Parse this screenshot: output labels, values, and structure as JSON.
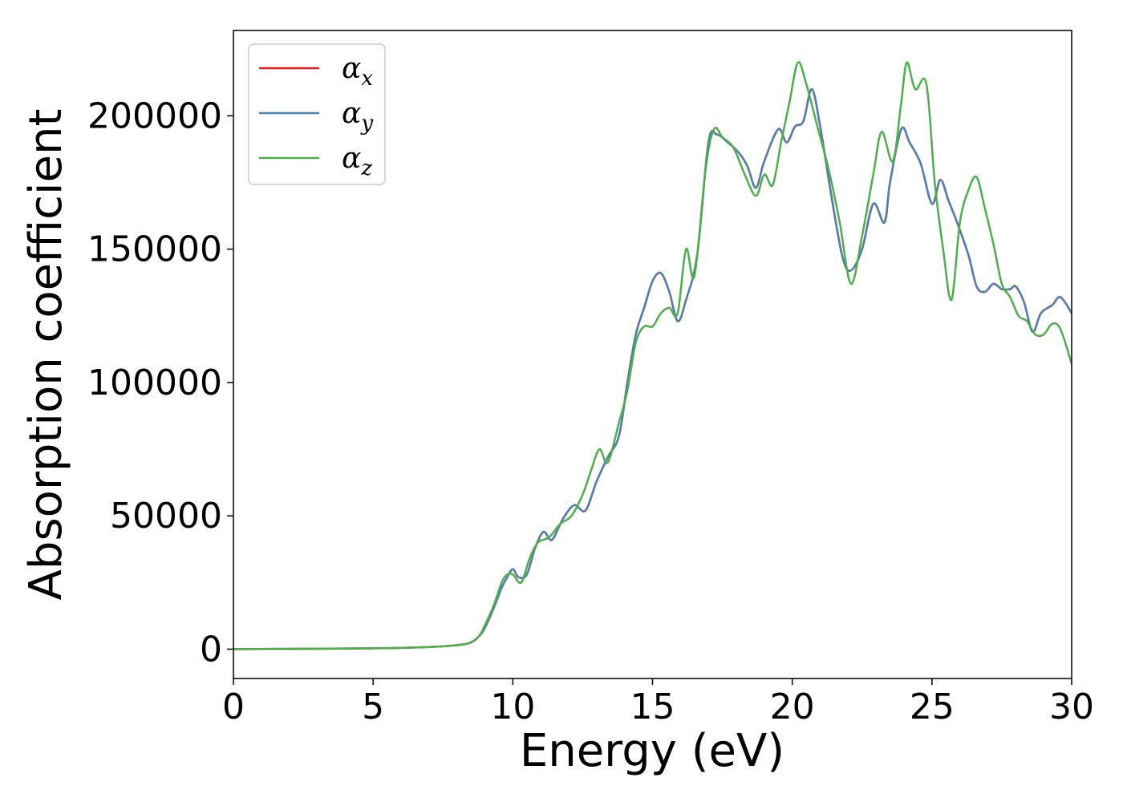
{
  "chart_data": {
    "type": "line",
    "xlabel": "Energy (eV)",
    "ylabel": "Absorption coefficient",
    "xlim": [
      0,
      30
    ],
    "ylim": [
      -11000,
      232000
    ],
    "xticks": [
      0,
      5,
      10,
      15,
      20,
      25,
      30
    ],
    "yticks": [
      0,
      50000,
      100000,
      150000,
      200000
    ],
    "grid": false,
    "legend_position": "top-left",
    "series": [
      {
        "name": "α_x",
        "label_base": "α",
        "label_sub": "x",
        "color": "#e41a1c",
        "x": [
          0,
          5,
          7,
          8,
          8.5,
          8.8,
          9.0,
          9.3,
          9.6,
          9.8,
          10.0,
          10.2,
          10.5,
          10.8,
          11.1,
          11.4,
          11.8,
          12.2,
          12.6,
          13.0,
          13.4,
          13.8,
          14.1,
          14.4,
          14.7,
          15.0,
          15.3,
          15.6,
          15.9,
          16.2,
          16.6,
          17.0,
          17.3,
          17.7,
          18.1,
          18.4,
          18.7,
          19.0,
          19.5,
          19.8,
          20.1,
          20.4,
          20.7,
          21.0,
          21.4,
          21.8,
          22.1,
          22.5,
          22.9,
          23.3,
          23.5,
          23.9,
          24.2,
          24.6,
          25.0,
          25.3,
          25.6,
          25.9,
          26.3,
          26.6,
          26.9,
          27.2,
          27.5,
          27.8,
          28.0,
          28.3,
          28.6,
          28.9,
          29.3,
          29.6,
          30.0
        ],
        "y": [
          0,
          300,
          800,
          1500,
          2500,
          5000,
          8000,
          15000,
          23000,
          27000,
          30000,
          27000,
          28000,
          38000,
          44000,
          41000,
          49000,
          54000,
          52000,
          63000,
          72000,
          80000,
          100000,
          118000,
          128000,
          138000,
          141000,
          134000,
          123000,
          131000,
          148000,
          190000,
          193000,
          190000,
          186000,
          181000,
          173000,
          183000,
          195000,
          190000,
          196000,
          198000,
          210000,
          196000,
          170000,
          147000,
          142000,
          150000,
          167000,
          160000,
          175000,
          195000,
          190000,
          182000,
          167000,
          176000,
          168000,
          160000,
          148000,
          136000,
          134000,
          137000,
          135000,
          135000,
          136000,
          130000,
          119000,
          126000,
          129000,
          132000,
          126000
        ]
      },
      {
        "name": "α_y",
        "label_base": "α",
        "label_sub": "y",
        "color": "#4f7fb3",
        "x": [
          0,
          5,
          7,
          8,
          8.5,
          8.8,
          9.0,
          9.3,
          9.6,
          9.8,
          10.0,
          10.2,
          10.5,
          10.8,
          11.1,
          11.4,
          11.8,
          12.2,
          12.6,
          13.0,
          13.4,
          13.8,
          14.1,
          14.4,
          14.7,
          15.0,
          15.3,
          15.6,
          15.9,
          16.2,
          16.6,
          17.0,
          17.3,
          17.7,
          18.1,
          18.4,
          18.7,
          19.0,
          19.5,
          19.8,
          20.1,
          20.4,
          20.7,
          21.0,
          21.4,
          21.8,
          22.1,
          22.5,
          22.9,
          23.3,
          23.5,
          23.9,
          24.2,
          24.6,
          25.0,
          25.3,
          25.6,
          25.9,
          26.3,
          26.6,
          26.9,
          27.2,
          27.5,
          27.8,
          28.0,
          28.3,
          28.6,
          28.9,
          29.3,
          29.6,
          30.0
        ],
        "y": [
          0,
          300,
          800,
          1500,
          2500,
          5000,
          8000,
          15000,
          23000,
          27000,
          30000,
          27000,
          28000,
          38000,
          44000,
          41000,
          49000,
          54000,
          52000,
          63000,
          72000,
          80000,
          100000,
          118000,
          128000,
          138000,
          141000,
          134000,
          123000,
          131000,
          148000,
          190000,
          193000,
          190000,
          186000,
          181000,
          173000,
          183000,
          195000,
          190000,
          196000,
          198000,
          210000,
          196000,
          170000,
          147000,
          142000,
          150000,
          167000,
          160000,
          175000,
          195000,
          190000,
          182000,
          167000,
          176000,
          168000,
          160000,
          148000,
          136000,
          134000,
          137000,
          135000,
          135000,
          136000,
          130000,
          119000,
          126000,
          129000,
          132000,
          126000
        ]
      },
      {
        "name": "α_z",
        "label_base": "α",
        "label_sub": "z",
        "color": "#4daf4a",
        "x": [
          0,
          5,
          7,
          8,
          8.5,
          8.8,
          9.0,
          9.3,
          9.6,
          9.8,
          10.0,
          10.3,
          10.6,
          10.9,
          11.3,
          11.7,
          12.1,
          12.5,
          12.8,
          13.1,
          13.4,
          13.8,
          14.1,
          14.4,
          14.7,
          15.0,
          15.3,
          15.6,
          15.9,
          16.2,
          16.5,
          16.9,
          17.2,
          17.5,
          17.9,
          18.3,
          18.7,
          19.0,
          19.3,
          19.6,
          19.9,
          20.2,
          20.5,
          20.9,
          21.3,
          21.7,
          22.1,
          22.5,
          22.9,
          23.2,
          23.6,
          23.9,
          24.1,
          24.4,
          24.8,
          25.1,
          25.4,
          25.7,
          26.0,
          26.3,
          26.6,
          26.9,
          27.2,
          27.5,
          27.8,
          28.1,
          28.4,
          28.7,
          29.0,
          29.3,
          29.6,
          30.0
        ],
        "y": [
          0,
          300,
          800,
          1500,
          2500,
          5000,
          9000,
          16000,
          25000,
          28000,
          28000,
          25000,
          34000,
          40000,
          42000,
          47000,
          50000,
          58000,
          67000,
          75000,
          70000,
          85000,
          97000,
          115000,
          121000,
          121000,
          126000,
          128000,
          126000,
          150000,
          140000,
          180000,
          195000,
          192000,
          188000,
          178000,
          170000,
          178000,
          174000,
          190000,
          205000,
          220000,
          212000,
          196000,
          180000,
          160000,
          137000,
          155000,
          178000,
          194000,
          183000,
          205000,
          220000,
          210000,
          212000,
          175000,
          150000,
          131000,
          160000,
          172000,
          177000,
          165000,
          152000,
          137000,
          132000,
          125000,
          123000,
          118000,
          118000,
          122000,
          120000,
          107000
        ]
      }
    ]
  }
}
